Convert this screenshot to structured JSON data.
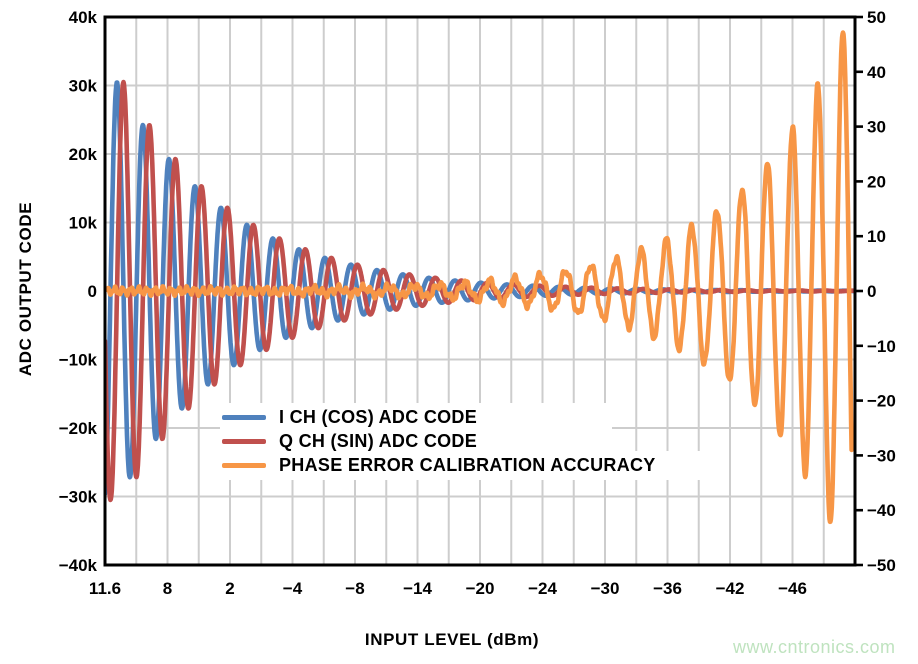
{
  "watermark": {
    "text": "www.cntronics.com",
    "color": "#bfe3bf"
  },
  "chart_data": {
    "type": "line",
    "title": "",
    "xlabel": "INPUT LEVEL (dBm)",
    "x_tick_labels": [
      "11.6",
      "8",
      "2",
      "−4",
      "−8",
      "−14",
      "−20",
      "−24",
      "−30",
      "−36",
      "−42",
      "−46"
    ],
    "x_gridline_intervals": 24,
    "x_labels_every_n_gridlines": 2,
    "grid": true,
    "grid_color": "#cdcdcd",
    "frame_color": "#000000",
    "left_axis": {
      "label": "ADC OUTPUT CODE",
      "range": [
        -40000,
        40000
      ],
      "tick_step": 10000,
      "tick_labels": [
        "40k",
        "30k",
        "20k",
        "10k",
        "0",
        "−10k",
        "−20k",
        "−30k",
        "−40k"
      ]
    },
    "right_axis": {
      "label": "",
      "range": [
        -50,
        50
      ],
      "tick_step": 10,
      "tick_labels": [
        "50",
        "40",
        "30",
        "20",
        "10",
        "0",
        "−10",
        "−20",
        "−30",
        "−40",
        "−50"
      ]
    },
    "legend_position": "inside-center-left",
    "series": [
      {
        "name": "I CH (COS) ADC CODE",
        "color": "#4F81BD",
        "axis": "left",
        "waveform": "decaying sinusoid, −2 dB amplitude per cycle",
        "period_u": 0.03467,
        "first_peak_u": 0.016,
        "clip_u": 1,
        "peak_envelope": [
          30500,
          24200,
          19250,
          15280,
          12140,
          9640,
          7660,
          6080,
          4830,
          3840,
          3050,
          2420,
          1920,
          1530,
          1210,
          960,
          770,
          610,
          480,
          380,
          305,
          240,
          190,
          153,
          121,
          96,
          77,
          61,
          48
        ]
      },
      {
        "name": "Q CH (SIN) ADC CODE",
        "color": "#C0504D",
        "axis": "left",
        "waveform": "decaying sinusoid, −2 dB amplitude per cycle, lags I by 90°",
        "period_u": 0.03467,
        "first_peak_u": 0.02467,
        "clip_u": 1,
        "peak_envelope": [
          30500,
          24200,
          19250,
          15280,
          12140,
          9640,
          7660,
          6080,
          4830,
          3840,
          3050,
          2420,
          1920,
          1530,
          1210,
          960,
          770,
          610,
          480,
          380,
          305,
          240,
          190,
          153,
          121,
          96,
          77,
          61,
          48
        ]
      },
      {
        "name": "PHASE ERROR CALIBRATION ACCURACY",
        "color": "#F79646",
        "axis": "right",
        "waveform": "growing sinusoid, +2 dB amplitude per cycle",
        "period_u": 0.0336,
        "first_peak_u": 0.00933,
        "clip_u": 0.996,
        "noise": {
          "a1": 0.5,
          "f1": 590,
          "a2": 0.28,
          "f2": 1390,
          "p2": 1.3
        },
        "peak_envelope": [
          0.06,
          0.07,
          0.09,
          0.12,
          0.15,
          0.19,
          0.24,
          0.3,
          0.37,
          0.47,
          0.59,
          0.74,
          0.94,
          1.18,
          1.48,
          1.87,
          2.35,
          2.96,
          3.73,
          4.7,
          5.91,
          7.44,
          9.37,
          11.8,
          14.8,
          18.7,
          23.5,
          29.6,
          37.3,
          47
        ]
      }
    ]
  }
}
